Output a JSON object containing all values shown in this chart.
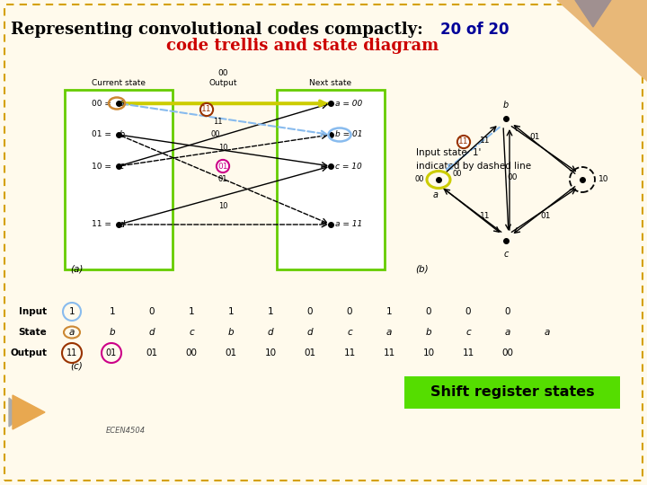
{
  "bg_color": "#FFFAEC",
  "border_color": "#D4A000",
  "title_text": "Representing convolutional codes compactly:",
  "title_color": "#000000",
  "subtitle_text": "code trellis and state diagram",
  "subtitle_color": "#CC0000",
  "badge_text": "20 of 20",
  "badge_color": "#000099",
  "triangle_color": "#E8B878",
  "triangle_dark": "#A09090",
  "annotation_text": "Input state '1'\nindicated by dashed line",
  "green_box_color": "#66CC00",
  "shift_register_bg": "#55DD00",
  "shift_register_text": "Shift register states",
  "footer_text": "ECEN4504",
  "left_arrow_color": "#E8A850"
}
